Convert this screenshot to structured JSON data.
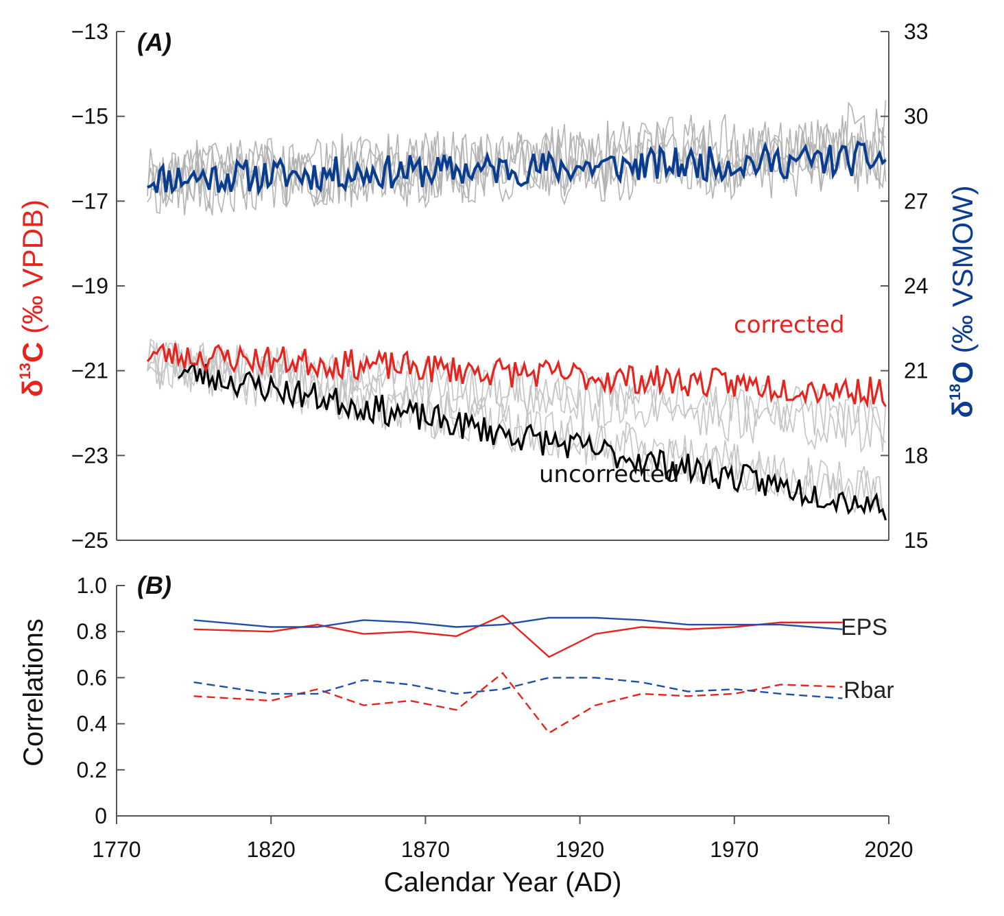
{
  "chart_data": [
    {
      "panel": "(A)",
      "type": "line",
      "xlim": [
        1770,
        2020
      ],
      "left_axis": {
        "label_symbol": "δ",
        "label_sup": "13",
        "label_elem": "C",
        "label_unit": " (‰ VPDB)",
        "ylim": [
          -25,
          -13
        ],
        "ticks": [
          -13,
          -15,
          -17,
          -19,
          -21,
          -23,
          -25
        ],
        "tick_labels": [
          "−13",
          "−15",
          "−17",
          "−19",
          "−21",
          "−23",
          "−25"
        ],
        "color": "#e8231d"
      },
      "right_axis": {
        "label_symbol": "δ",
        "label_sup": "18",
        "label_elem": "O",
        "label_unit": " (‰ VSMOW)",
        "ylim": [
          15,
          33
        ],
        "ticks": [
          33,
          30,
          27,
          24,
          21,
          18,
          15
        ],
        "tick_labels": [
          "33",
          "30",
          "27",
          "24",
          "21",
          "18",
          "15"
        ],
        "color": "#0a3d8f"
      },
      "series_labels": {
        "corrected": "corrected",
        "uncorrected": "uncorrected"
      },
      "series": [
        {
          "name": "δ18O mean",
          "axis": "right",
          "color": "#0a3d8f",
          "x_start": 1780,
          "x_end": 2019,
          "mean_start": 27.8,
          "mean_end": 28.5,
          "noise": 0.6,
          "seed": 11
        },
        {
          "name": "δ18O individual trees",
          "axis": "right",
          "color": "#b3b3b3",
          "count": 4,
          "spread": 1.2
        },
        {
          "name": "δ13C corrected",
          "axis": "left",
          "color": "#e8231d",
          "x_start": 1780,
          "x_end": 2019,
          "mean_start": -20.6,
          "mean_end": -21.5,
          "noise": 0.35,
          "seed": 23
        },
        {
          "name": "δ13C uncorrected",
          "axis": "left",
          "color": "#000000",
          "x_start": 1790,
          "x_end": 2019,
          "mean_start": -21.0,
          "mean_end": -24.2,
          "noise": 0.35,
          "seed": 23
        },
        {
          "name": "δ13C individual trees",
          "axis": "left",
          "color": "#c4c4c4",
          "count": 4,
          "spread": 0.6
        }
      ]
    },
    {
      "panel": "(B)",
      "type": "line",
      "ylabel": "Correlations",
      "xlabel": "Calendar Year (AD)",
      "xlim": [
        1770,
        2020
      ],
      "ylim": [
        0,
        1.0
      ],
      "xticks": [
        1770,
        1820,
        1870,
        1920,
        1970,
        2020
      ],
      "xtick_labels": [
        "1770",
        "1820",
        "1870",
        "1920",
        "1970",
        "2020"
      ],
      "yticks": [
        0,
        0.2,
        0.4,
        0.6,
        0.8,
        1.0
      ],
      "ytick_labels": [
        "0",
        "0.2",
        "0.4",
        "0.6",
        "0.8",
        "1.0"
      ],
      "legend": {
        "eps": "EPS",
        "rbar": "Rbar"
      },
      "x": [
        1795,
        1820,
        1835,
        1850,
        1865,
        1880,
        1895,
        1910,
        1925,
        1940,
        1955,
        1970,
        1985,
        2005
      ],
      "series": [
        {
          "name": "EPS δ13C",
          "color": "#e8231d",
          "dash": false,
          "values": [
            0.81,
            0.8,
            0.83,
            0.79,
            0.8,
            0.78,
            0.87,
            0.69,
            0.79,
            0.82,
            0.81,
            0.82,
            0.84,
            0.84
          ]
        },
        {
          "name": "EPS δ18O",
          "color": "#1f4fa8",
          "dash": false,
          "values": [
            0.85,
            0.82,
            0.82,
            0.85,
            0.84,
            0.82,
            0.83,
            0.86,
            0.86,
            0.85,
            0.83,
            0.83,
            0.83,
            0.81
          ]
        },
        {
          "name": "Rbar δ13C",
          "color": "#e8231d",
          "dash": true,
          "values": [
            0.52,
            0.5,
            0.55,
            0.48,
            0.5,
            0.46,
            0.62,
            0.36,
            0.48,
            0.53,
            0.52,
            0.53,
            0.57,
            0.56
          ]
        },
        {
          "name": "Rbar δ18O",
          "color": "#1f4fa8",
          "dash": true,
          "values": [
            0.58,
            0.53,
            0.53,
            0.59,
            0.57,
            0.53,
            0.55,
            0.6,
            0.6,
            0.58,
            0.54,
            0.55,
            0.53,
            0.51
          ]
        }
      ]
    }
  ]
}
